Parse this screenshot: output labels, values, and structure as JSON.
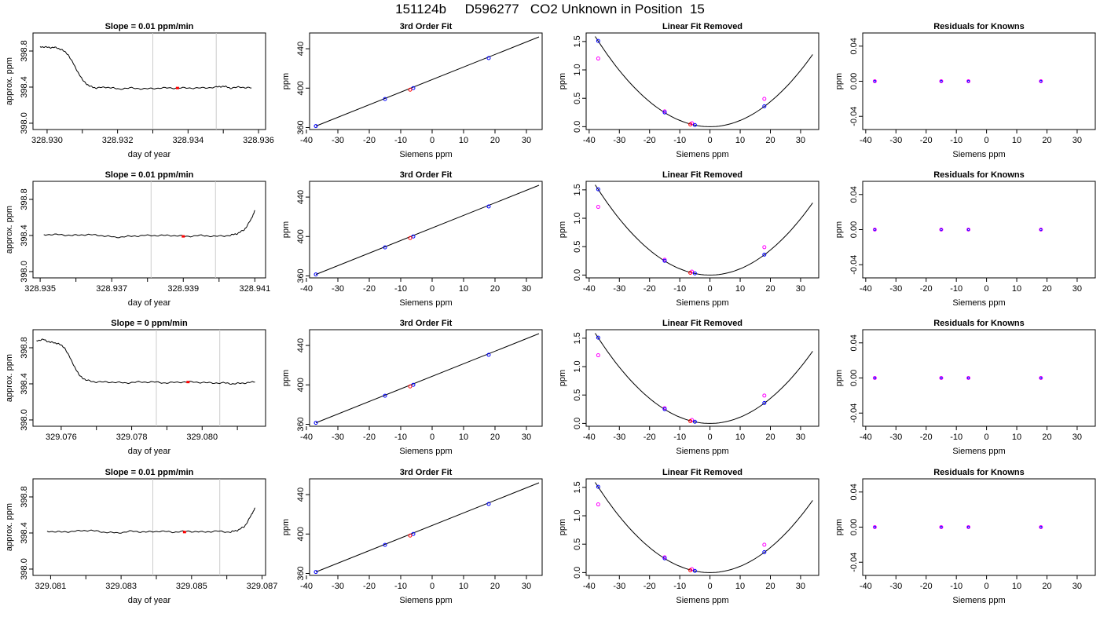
{
  "title": "151124b     D596277   CO2 Unknown in Position  15",
  "colors": {
    "line": "#000000",
    "highlight": "#ff0000",
    "blue": "#0000ff",
    "magenta": "#ff00ff",
    "window": "#cccccc"
  },
  "chart_data": [
    {
      "type": "line",
      "row": 0,
      "col": 0,
      "title": "Slope =  0.01  ppm/min",
      "xlabel": "day of year",
      "ylabel": "approx. ppm",
      "xlim": [
        328.9296,
        328.9362
      ],
      "ylim": [
        397.93,
        399.0
      ],
      "xticks": [
        328.93,
        328.932,
        328.934,
        328.936
      ],
      "xtick_labels": [
        "328.930",
        "328.932",
        "328.934",
        "328.936"
      ],
      "xticks_unlabeled": [
        328.931,
        328.933,
        328.935
      ],
      "yticks": [
        398.0,
        398.4,
        398.8
      ],
      "ytick_labels": [
        "398.0",
        "398.4",
        "398.8"
      ],
      "vlines": [
        328.933,
        328.9348
      ],
      "x": [
        328.9298,
        328.93,
        328.9302,
        328.9304,
        328.9306,
        328.9308,
        328.931,
        328.9312,
        328.9314,
        328.9317,
        328.932,
        328.9324,
        328.9328,
        328.9332,
        328.9336,
        328.934,
        328.9344,
        328.9348,
        328.935,
        328.9352,
        328.9355,
        328.9358
      ],
      "y": [
        398.85,
        398.84,
        398.84,
        398.82,
        398.76,
        398.62,
        398.48,
        398.41,
        398.39,
        398.4,
        398.38,
        398.39,
        398.38,
        398.39,
        398.39,
        398.39,
        398.39,
        398.4,
        398.41,
        398.39,
        398.4,
        398.39
      ],
      "highlight": {
        "x": 328.9337,
        "y": 398.39
      }
    },
    {
      "type": "scatter",
      "row": 0,
      "col": 1,
      "title": "3rd Order Fit",
      "xlabel": "Siemens ppm",
      "ylabel": "ppm",
      "xlim": [
        -39,
        35
      ],
      "ylim": [
        358,
        456
      ],
      "xticks": [
        -40,
        -30,
        -20,
        -10,
        0,
        10,
        20,
        30
      ],
      "xtick_labels": [
        "-40",
        "-30",
        "-20",
        "-10",
        "0",
        "10",
        "20",
        "30"
      ],
      "yticks": [
        360,
        400,
        440
      ],
      "ytick_labels": [
        "360",
        "400",
        "440"
      ],
      "fit_x": [
        -37,
        34
      ],
      "fit_y": [
        361.5,
        452
      ],
      "points_x": [
        -37.0,
        -15.0,
        -6.0,
        18.0
      ],
      "points_y": [
        361.5,
        389.0,
        400.0,
        430.5
      ],
      "unknown": {
        "x": -7.0,
        "y": 398.4
      }
    },
    {
      "type": "line",
      "row": 0,
      "col": 2,
      "title": "Linear Fit Removed",
      "xlabel": "Siemens ppm",
      "ylabel": "ppm",
      "xlim": [
        -41,
        36
      ],
      "ylim": [
        -0.05,
        1.65
      ],
      "xticks": [
        -40,
        -30,
        -20,
        -10,
        0,
        10,
        20,
        30
      ],
      "xtick_labels": [
        "-40",
        "-30",
        "-20",
        "-10",
        "0",
        "10",
        "20",
        "30"
      ],
      "yticks": [
        0.0,
        0.5,
        1.0,
        1.5
      ],
      "ytick_labels": [
        "0.0",
        "0.5",
        "1.0",
        "1.5"
      ],
      "curve_coef": 0.0011,
      "points_blue_x": [
        -37.0,
        -15.0,
        -5.0,
        18.0
      ],
      "points_blue_y": [
        1.51,
        0.25,
        0.03,
        0.36
      ],
      "points_magenta_x": [
        -37.0,
        -15.0,
        -6.0,
        18.0
      ],
      "points_magenta_y": [
        1.2,
        0.27,
        0.06,
        0.49
      ],
      "unknown": {
        "x": -6.5,
        "y": 0.04
      }
    },
    {
      "type": "scatter",
      "row": 0,
      "col": 3,
      "title": "Residuals for Knowns",
      "xlabel": "Siemens ppm",
      "ylabel": "ppm",
      "xlim": [
        -41,
        36
      ],
      "ylim": [
        -0.055,
        0.055
      ],
      "xticks": [
        -40,
        -30,
        -20,
        -10,
        0,
        10,
        20,
        30
      ],
      "xtick_labels": [
        "-40",
        "-30",
        "-20",
        "-10",
        "0",
        "10",
        "20",
        "30"
      ],
      "yticks": [
        -0.04,
        0.0,
        0.04
      ],
      "ytick_labels": [
        "-0.04",
        "0.00",
        "0.04"
      ],
      "points_x": [
        -37.0,
        -15.0,
        -6.0,
        18.0
      ],
      "points_y": [
        0,
        0,
        0,
        0
      ]
    },
    {
      "type": "line",
      "row": 1,
      "col": 0,
      "title": "Slope =  0.01  ppm/min",
      "xlabel": "day of year",
      "ylabel": "approx. ppm",
      "xlim": [
        328.9348,
        328.9413
      ],
      "ylim": [
        397.93,
        399.0
      ],
      "xticks": [
        328.935,
        328.937,
        328.939,
        328.941
      ],
      "xtick_labels": [
        "328.935",
        "328.937",
        "328.939",
        "328.941"
      ],
      "xticks_unlabeled": [
        328.936,
        328.938,
        328.94
      ],
      "yticks": [
        398.0,
        398.4,
        398.8
      ],
      "ytick_labels": [
        "398.0",
        "398.4",
        "398.8"
      ],
      "vlines": [
        328.9381,
        328.9399
      ],
      "x": [
        328.9351,
        328.9355,
        328.9359,
        328.9363,
        328.9367,
        328.9371,
        328.9375,
        328.9379,
        328.9383,
        328.9387,
        328.9391,
        328.9395,
        328.9399,
        328.9403,
        328.9405,
        328.9407,
        328.9409,
        328.941
      ],
      "y": [
        398.41,
        398.41,
        398.4,
        398.41,
        398.4,
        398.38,
        398.39,
        398.4,
        398.4,
        398.4,
        398.39,
        398.4,
        398.39,
        398.4,
        398.42,
        398.46,
        398.58,
        398.68
      ],
      "highlight": {
        "x": 328.939,
        "y": 398.39
      }
    },
    {
      "type": "scatter",
      "row": 1,
      "col": 1,
      "title": "3rd Order Fit",
      "xlabel": "Siemens ppm",
      "ylabel": "ppm",
      "xlim": [
        -39,
        35
      ],
      "ylim": [
        358,
        456
      ],
      "xticks": [
        -40,
        -30,
        -20,
        -10,
        0,
        10,
        20,
        30
      ],
      "xtick_labels": [
        "-40",
        "-30",
        "-20",
        "-10",
        "0",
        "10",
        "20",
        "30"
      ],
      "yticks": [
        360,
        400,
        440
      ],
      "ytick_labels": [
        "360",
        "400",
        "440"
      ],
      "fit_x": [
        -37,
        34
      ],
      "fit_y": [
        361.5,
        452
      ],
      "points_x": [
        -37.0,
        -15.0,
        -6.0,
        18.0
      ],
      "points_y": [
        361.5,
        389.0,
        400.0,
        430.5
      ],
      "unknown": {
        "x": -7.0,
        "y": 398.4
      }
    },
    {
      "type": "line",
      "row": 1,
      "col": 2,
      "title": "Linear Fit Removed",
      "xlabel": "Siemens ppm",
      "ylabel": "ppm",
      "xlim": [
        -41,
        36
      ],
      "ylim": [
        -0.05,
        1.65
      ],
      "xticks": [
        -40,
        -30,
        -20,
        -10,
        0,
        10,
        20,
        30
      ],
      "xtick_labels": [
        "-40",
        "-30",
        "-20",
        "-10",
        "0",
        "10",
        "20",
        "30"
      ],
      "yticks": [
        0.0,
        0.5,
        1.0,
        1.5
      ],
      "ytick_labels": [
        "0.0",
        "0.5",
        "1.0",
        "1.5"
      ],
      "curve_coef": 0.0011,
      "points_blue_x": [
        -37.0,
        -15.0,
        -5.0,
        18.0
      ],
      "points_blue_y": [
        1.51,
        0.25,
        0.03,
        0.36
      ],
      "points_magenta_x": [
        -37.0,
        -15.0,
        -6.0,
        18.0
      ],
      "points_magenta_y": [
        1.2,
        0.27,
        0.06,
        0.49
      ],
      "unknown": {
        "x": -6.5,
        "y": 0.04
      }
    },
    {
      "type": "scatter",
      "row": 1,
      "col": 3,
      "title": "Residuals for Knowns",
      "xlabel": "Siemens ppm",
      "ylabel": "ppm",
      "xlim": [
        -41,
        36
      ],
      "ylim": [
        -0.055,
        0.055
      ],
      "xticks": [
        -40,
        -30,
        -20,
        -10,
        0,
        10,
        20,
        30
      ],
      "xtick_labels": [
        "-40",
        "-30",
        "-20",
        "-10",
        "0",
        "10",
        "20",
        "30"
      ],
      "yticks": [
        -0.04,
        0.0,
        0.04
      ],
      "ytick_labels": [
        "-0.04",
        "0.00",
        "0.04"
      ],
      "points_x": [
        -37.0,
        -15.0,
        -6.0,
        18.0
      ],
      "points_y": [
        0,
        0,
        0,
        0
      ]
    },
    {
      "type": "line",
      "row": 2,
      "col": 0,
      "title": "Slope =  0  ppm/min",
      "xlabel": "day of year",
      "ylabel": "approx. ppm",
      "xlim": [
        329.0752,
        329.0818
      ],
      "ylim": [
        397.93,
        399.0
      ],
      "xticks": [
        329.076,
        329.078,
        329.08
      ],
      "xtick_labels": [
        "329.076",
        "329.078",
        "329.080"
      ],
      "xticks_unlabeled": [
        329.077,
        329.079,
        329.081
      ],
      "yticks": [
        398.0,
        398.4,
        398.8
      ],
      "ytick_labels": [
        "398.0",
        "398.4",
        "398.8"
      ],
      "vlines": [
        329.0787,
        329.0805
      ],
      "x": [
        329.0753,
        329.0755,
        329.0757,
        329.0759,
        329.0761,
        329.0763,
        329.0765,
        329.0767,
        329.077,
        329.0774,
        329.0778,
        329.0782,
        329.0786,
        329.079,
        329.0794,
        329.0798,
        329.0802,
        329.0806,
        329.0809,
        329.0812,
        329.0815
      ],
      "y": [
        398.88,
        398.89,
        398.86,
        398.85,
        398.8,
        398.65,
        398.5,
        398.44,
        398.42,
        398.42,
        398.41,
        398.42,
        398.42,
        398.41,
        398.42,
        398.42,
        398.41,
        398.41,
        398.4,
        398.41,
        398.42
      ],
      "highlight": {
        "x": 329.0796,
        "y": 398.42
      }
    },
    {
      "type": "scatter",
      "row": 2,
      "col": 1,
      "title": "3rd Order Fit",
      "xlabel": "Siemens ppm",
      "ylabel": "ppm",
      "xlim": [
        -39,
        35
      ],
      "ylim": [
        358,
        456
      ],
      "xticks": [
        -40,
        -30,
        -20,
        -10,
        0,
        10,
        20,
        30
      ],
      "xtick_labels": [
        "-40",
        "-30",
        "-20",
        "-10",
        "0",
        "10",
        "20",
        "30"
      ],
      "yticks": [
        360,
        400,
        440
      ],
      "ytick_labels": [
        "360",
        "400",
        "440"
      ],
      "fit_x": [
        -37,
        34
      ],
      "fit_y": [
        361.5,
        452
      ],
      "points_x": [
        -37.0,
        -15.0,
        -6.0,
        18.0
      ],
      "points_y": [
        361.5,
        389.0,
        400.0,
        430.5
      ],
      "unknown": {
        "x": -7.0,
        "y": 398.4
      }
    },
    {
      "type": "line",
      "row": 2,
      "col": 2,
      "title": "Linear Fit Removed",
      "xlabel": "Siemens ppm",
      "ylabel": "ppm",
      "xlim": [
        -41,
        36
      ],
      "ylim": [
        -0.05,
        1.65
      ],
      "xticks": [
        -40,
        -30,
        -20,
        -10,
        0,
        10,
        20,
        30
      ],
      "xtick_labels": [
        "-40",
        "-30",
        "-20",
        "-10",
        "0",
        "10",
        "20",
        "30"
      ],
      "yticks": [
        0.0,
        0.5,
        1.0,
        1.5
      ],
      "ytick_labels": [
        "0.0",
        "0.5",
        "1.0",
        "1.5"
      ],
      "curve_coef": 0.0011,
      "points_blue_x": [
        -37.0,
        -15.0,
        -5.0,
        18.0
      ],
      "points_blue_y": [
        1.51,
        0.25,
        0.03,
        0.36
      ],
      "points_magenta_x": [
        -37.0,
        -15.0,
        -6.0,
        18.0
      ],
      "points_magenta_y": [
        1.2,
        0.27,
        0.06,
        0.49
      ],
      "unknown": {
        "x": -6.5,
        "y": 0.04
      }
    },
    {
      "type": "scatter",
      "row": 2,
      "col": 3,
      "title": "Residuals for Knowns",
      "xlabel": "Siemens ppm",
      "ylabel": "ppm",
      "xlim": [
        -41,
        36
      ],
      "ylim": [
        -0.055,
        0.055
      ],
      "xticks": [
        -40,
        -30,
        -20,
        -10,
        0,
        10,
        20,
        30
      ],
      "xtick_labels": [
        "-40",
        "-30",
        "-20",
        "-10",
        "0",
        "10",
        "20",
        "30"
      ],
      "yticks": [
        -0.04,
        0.0,
        0.04
      ],
      "ytick_labels": [
        "-0.04",
        "0.00",
        "0.04"
      ],
      "points_x": [
        -37.0,
        -15.0,
        -6.0,
        18.0
      ],
      "points_y": [
        0,
        0,
        0,
        0
      ]
    },
    {
      "type": "line",
      "row": 3,
      "col": 0,
      "title": "Slope =  0.01  ppm/min",
      "xlabel": "day of year",
      "ylabel": "approx. ppm",
      "xlim": [
        329.0805,
        329.0871
      ],
      "ylim": [
        397.93,
        399.0
      ],
      "xticks": [
        329.081,
        329.083,
        329.085,
        329.087
      ],
      "xtick_labels": [
        "329.081",
        "329.083",
        "329.085",
        "329.087"
      ],
      "xticks_unlabeled": [
        329.082,
        329.084,
        329.086
      ],
      "yticks": [
        398.0,
        398.4,
        398.8
      ],
      "ytick_labels": [
        "398.0",
        "398.4",
        "398.8"
      ],
      "vlines": [
        329.0839,
        329.0858
      ],
      "x": [
        329.0809,
        329.0813,
        329.0817,
        329.0821,
        329.0825,
        329.0829,
        329.0833,
        329.0837,
        329.0841,
        329.0845,
        329.0849,
        329.0853,
        329.0857,
        329.0861,
        329.0863,
        329.0865,
        329.0867,
        329.0868
      ],
      "y": [
        398.42,
        398.41,
        398.42,
        398.43,
        398.41,
        398.4,
        398.42,
        398.41,
        398.42,
        398.41,
        398.42,
        398.41,
        398.42,
        398.41,
        398.43,
        398.47,
        398.6,
        398.68
      ],
      "highlight": {
        "x": 329.0848,
        "y": 398.41
      }
    },
    {
      "type": "scatter",
      "row": 3,
      "col": 1,
      "title": "3rd Order Fit",
      "xlabel": "Siemens ppm",
      "ylabel": "ppm",
      "xlim": [
        -39,
        35
      ],
      "ylim": [
        358,
        456
      ],
      "xticks": [
        -40,
        -30,
        -20,
        -10,
        0,
        10,
        20,
        30
      ],
      "xtick_labels": [
        "-40",
        "-30",
        "-20",
        "-10",
        "0",
        "10",
        "20",
        "30"
      ],
      "yticks": [
        360,
        400,
        440
      ],
      "ytick_labels": [
        "360",
        "400",
        "440"
      ],
      "fit_x": [
        -37,
        34
      ],
      "fit_y": [
        361.5,
        452
      ],
      "points_x": [
        -37.0,
        -15.0,
        -6.0,
        18.0
      ],
      "points_y": [
        361.5,
        389.0,
        400.0,
        430.5
      ],
      "unknown": {
        "x": -7.0,
        "y": 398.4
      }
    },
    {
      "type": "line",
      "row": 3,
      "col": 2,
      "title": "Linear Fit Removed",
      "xlabel": "Siemens ppm",
      "ylabel": "ppm",
      "xlim": [
        -41,
        36
      ],
      "ylim": [
        -0.05,
        1.65
      ],
      "xticks": [
        -40,
        -30,
        -20,
        -10,
        0,
        10,
        20,
        30
      ],
      "xtick_labels": [
        "-40",
        "-30",
        "-20",
        "-10",
        "0",
        "10",
        "20",
        "30"
      ],
      "yticks": [
        0.0,
        0.5,
        1.0,
        1.5
      ],
      "ytick_labels": [
        "0.0",
        "0.5",
        "1.0",
        "1.5"
      ],
      "curve_coef": 0.0011,
      "points_blue_x": [
        -37.0,
        -15.0,
        -5.0,
        18.0
      ],
      "points_blue_y": [
        1.51,
        0.25,
        0.03,
        0.36
      ],
      "points_magenta_x": [
        -37.0,
        -15.0,
        -6.0,
        18.0
      ],
      "points_magenta_y": [
        1.2,
        0.27,
        0.06,
        0.49
      ],
      "unknown": {
        "x": -6.5,
        "y": 0.04
      }
    },
    {
      "type": "scatter",
      "row": 3,
      "col": 3,
      "title": "Residuals for Knowns",
      "xlabel": "Siemens ppm",
      "ylabel": "ppm",
      "xlim": [
        -41,
        36
      ],
      "ylim": [
        -0.055,
        0.055
      ],
      "xticks": [
        -40,
        -30,
        -20,
        -10,
        0,
        10,
        20,
        30
      ],
      "xtick_labels": [
        "-40",
        "-30",
        "-20",
        "-10",
        "0",
        "10",
        "20",
        "30"
      ],
      "yticks": [
        -0.04,
        0.0,
        0.04
      ],
      "ytick_labels": [
        "-0.04",
        "0.00",
        "0.04"
      ],
      "points_x": [
        -37.0,
        -15.0,
        -6.0,
        18.0
      ],
      "points_y": [
        0,
        0,
        0,
        0
      ]
    }
  ]
}
